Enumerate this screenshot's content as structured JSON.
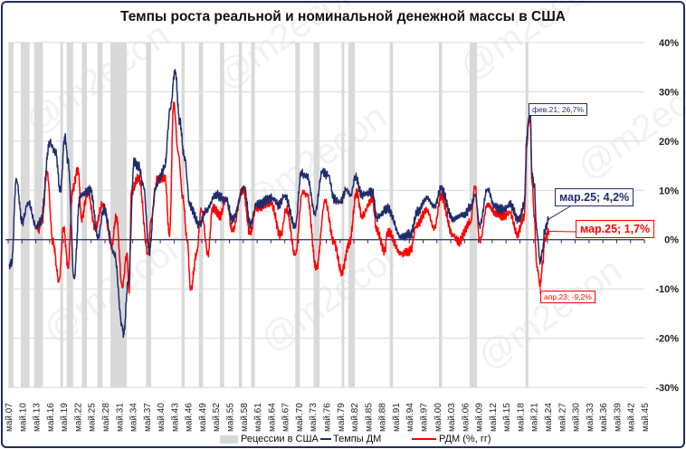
{
  "chart_data": {
    "type": "line",
    "title": "Темпы роста реальной и номинальной денежной массы в США",
    "ylim": [
      -30,
      40
    ],
    "yticks": [
      "-30%",
      "-20%",
      "-10%",
      "0%",
      "10%",
      "20%",
      "30%",
      "40%"
    ],
    "ytick_values": [
      -30,
      -20,
      -10,
      0,
      10,
      20,
      30,
      40
    ],
    "y_axis_position": "right",
    "grid": true,
    "legend_placement": "bottom",
    "xlim": [
      1907.3,
      2047
    ],
    "xticks": [
      "май.07",
      "май.10",
      "май.13",
      "май.16",
      "май.19",
      "май.22",
      "май.25",
      "май.28",
      "май.31",
      "май.34",
      "май.37",
      "май.40",
      "май.43",
      "май.46",
      "май.49",
      "май.52",
      "май.55",
      "май.58",
      "май.61",
      "май.64",
      "май.67",
      "май.70",
      "май.73",
      "май.76",
      "май.79",
      "май.82",
      "май.85",
      "май.88",
      "май.91",
      "май.94",
      "май.97",
      "май.00",
      "май.03",
      "май.06",
      "май.09",
      "май.12",
      "май.15",
      "май.18",
      "май.21",
      "май.24",
      "май.27",
      "май.30",
      "май.33",
      "май.36",
      "май.39",
      "май.42",
      "май.45"
    ],
    "recessions": [
      [
        1907.4,
        1908.5
      ],
      [
        1910.1,
        1912.0
      ],
      [
        1913.0,
        1914.9
      ],
      [
        1918.7,
        1919.2
      ],
      [
        1920.1,
        1921.5
      ],
      [
        1923.4,
        1924.5
      ],
      [
        1926.8,
        1927.9
      ],
      [
        1929.6,
        1933.2
      ],
      [
        1937.4,
        1938.5
      ],
      [
        1945.1,
        1945.8
      ],
      [
        1948.9,
        1949.8
      ],
      [
        1953.5,
        1954.4
      ],
      [
        1957.6,
        1958.3
      ],
      [
        1960.3,
        1961.1
      ],
      [
        1969.9,
        1970.9
      ],
      [
        1973.9,
        1975.2
      ],
      [
        1980.0,
        1980.5
      ],
      [
        1981.5,
        1982.9
      ],
      [
        1990.5,
        1991.2
      ],
      [
        2001.2,
        2001.9
      ],
      [
        2007.9,
        2009.5
      ],
      [
        2020.1,
        2020.4
      ]
    ],
    "series": [
      {
        "name": "Темпы ДМ",
        "color": "#1f2d6b",
        "points": [
          [
            1907.6,
            -5
          ],
          [
            1908.1,
            -4.8
          ],
          [
            1909.1,
            12.4
          ],
          [
            1910.4,
            3.6
          ],
          [
            1911.7,
            7.6
          ],
          [
            1913.4,
            2.7
          ],
          [
            1914.4,
            3.6
          ],
          [
            1916.4,
            19.7
          ],
          [
            1917.7,
            17.6
          ],
          [
            1918.7,
            9.7
          ],
          [
            1919.7,
            20.9
          ],
          [
            1920.4,
            15.8
          ],
          [
            1921.7,
            -7.9
          ],
          [
            1923,
            9.1
          ],
          [
            1925.3,
            10
          ],
          [
            1926.9,
            0.6
          ],
          [
            1928.2,
            6.1
          ],
          [
            1930.5,
            -3
          ],
          [
            1932.2,
            -17.6
          ],
          [
            1932.5,
            -19.1
          ],
          [
            1933.5,
            -8.5
          ],
          [
            1934.8,
            15.8
          ],
          [
            1935.8,
            14.8
          ],
          [
            1936.8,
            10.9
          ],
          [
            1938.1,
            -2.4
          ],
          [
            1939.4,
            10.3
          ],
          [
            1940.4,
            12.7
          ],
          [
            1941.4,
            14.5
          ],
          [
            1942.7,
            26.7
          ],
          [
            1943.7,
            34.5
          ],
          [
            1944.7,
            24.2
          ],
          [
            1945.7,
            17
          ],
          [
            1947,
            6.7
          ],
          [
            1949,
            3
          ],
          [
            1950.6,
            6.1
          ],
          [
            1952.6,
            9.1
          ],
          [
            1954.9,
            8
          ],
          [
            1956.2,
            4
          ],
          [
            1958.8,
            10.6
          ],
          [
            1960.1,
            3
          ],
          [
            1961.4,
            7
          ],
          [
            1965,
            8.5
          ],
          [
            1966.3,
            7
          ],
          [
            1967.6,
            9
          ],
          [
            1969.9,
            2.6
          ],
          [
            1971.2,
            13.4
          ],
          [
            1972.5,
            12.8
          ],
          [
            1974.2,
            5.4
          ],
          [
            1975.8,
            13.7
          ],
          [
            1977.1,
            13
          ],
          [
            1978.4,
            8.2
          ],
          [
            1979.7,
            7.5
          ],
          [
            1981,
            10
          ],
          [
            1982,
            9
          ],
          [
            1983,
            12.8
          ],
          [
            1984.4,
            9.1
          ],
          [
            1986.7,
            9.7
          ],
          [
            1987.7,
            4.5
          ],
          [
            1990,
            6.3
          ],
          [
            1993,
            0.5
          ],
          [
            1995,
            1.1
          ],
          [
            1996.6,
            5.7
          ],
          [
            1998.6,
            8.5
          ],
          [
            2000.2,
            6.6
          ],
          [
            2001.7,
            10.3
          ],
          [
            2004.2,
            4.2
          ],
          [
            2006.8,
            5.1
          ],
          [
            2008.1,
            6.6
          ],
          [
            2009.1,
            9.1
          ],
          [
            2010.1,
            2.9
          ],
          [
            2011.8,
            10.3
          ],
          [
            2013.4,
            6.6
          ],
          [
            2015.4,
            6
          ],
          [
            2016.7,
            7.2
          ],
          [
            2018.6,
            3.9
          ],
          [
            2019.8,
            6.9
          ],
          [
            2020.4,
            21
          ],
          [
            2020.7,
            24
          ],
          [
            2021.1,
            26.7
          ],
          [
            2021.5,
            13
          ],
          [
            2022,
            11
          ],
          [
            2022.5,
            2
          ],
          [
            2023.3,
            -4.5
          ],
          [
            2023.8,
            -2
          ],
          [
            2024.3,
            2
          ],
          [
            2025.2,
            4.2
          ]
        ]
      },
      {
        "name": "РДМ (%, гг)",
        "color": "#ff0000",
        "points": [
          [
            1913.8,
            1.8
          ],
          [
            1914.8,
            4.2
          ],
          [
            1915.8,
            13.9
          ],
          [
            1917.1,
            -0.6
          ],
          [
            1918.4,
            -8.5
          ],
          [
            1919.4,
            2.4
          ],
          [
            1920.4,
            -5.5
          ],
          [
            1921.4,
            10.3
          ],
          [
            1922.6,
            14.5
          ],
          [
            1923.3,
            4.2
          ],
          [
            1924.7,
            9.7
          ],
          [
            1926.3,
            2.4
          ],
          [
            1928,
            7.3
          ],
          [
            1929.9,
            -1.2
          ],
          [
            1930.9,
            4.8
          ],
          [
            1932.2,
            -9.7
          ],
          [
            1933.2,
            -3
          ],
          [
            1933.7,
            -10.9
          ],
          [
            1934.2,
            9.7
          ],
          [
            1935.8,
            12.7
          ],
          [
            1937.8,
            -3
          ],
          [
            1938.5,
            4.2
          ],
          [
            1939.8,
            12.1
          ],
          [
            1941.5,
            12.7
          ],
          [
            1942.5,
            0.6
          ],
          [
            1943.4,
            27.9
          ],
          [
            1944.4,
            17.6
          ],
          [
            1945.4,
            8.5
          ],
          [
            1946.4,
            -0.6
          ],
          [
            1947.1,
            -10.3
          ],
          [
            1948.4,
            -3
          ],
          [
            1949.4,
            6.1
          ],
          [
            1950.9,
            -2.9
          ],
          [
            1951.9,
            6.6
          ],
          [
            1953.5,
            4.8
          ],
          [
            1954.9,
            8.5
          ],
          [
            1956.2,
            1.7
          ],
          [
            1958.5,
            10.3
          ],
          [
            1960.1,
            1.1
          ],
          [
            1961.4,
            6.6
          ],
          [
            1964.7,
            7.2
          ],
          [
            1966.7,
            0.8
          ],
          [
            1968,
            6.3
          ],
          [
            1969.9,
            -3.2
          ],
          [
            1971.5,
            9.7
          ],
          [
            1972.5,
            9
          ],
          [
            1974.5,
            -6
          ],
          [
            1976.4,
            7.8
          ],
          [
            1978.4,
            -0.7
          ],
          [
            1980,
            -6.6
          ],
          [
            1981.7,
            -0.7
          ],
          [
            1983.3,
            9.7
          ],
          [
            1984.4,
            4.8
          ],
          [
            1986.7,
            8.2
          ],
          [
            1987.7,
            1.7
          ],
          [
            1989.4,
            -2.3
          ],
          [
            1990,
            1.7
          ],
          [
            1993,
            -2.9
          ],
          [
            1995,
            -2.3
          ],
          [
            1996.3,
            2.9
          ],
          [
            1998.6,
            6
          ],
          [
            2000.2,
            2.3
          ],
          [
            2001.7,
            8.8
          ],
          [
            2004.2,
            1.1
          ],
          [
            2005.5,
            -0.4
          ],
          [
            2008.1,
            3.6
          ],
          [
            2009.1,
            10.9
          ],
          [
            2010.1,
            -0.4
          ],
          [
            2011.8,
            7.2
          ],
          [
            2013.4,
            5.4
          ],
          [
            2015.4,
            4.8
          ],
          [
            2016.7,
            5.4
          ],
          [
            2018.3,
            1.1
          ],
          [
            2019.8,
            4.8
          ],
          [
            2020.4,
            19
          ],
          [
            2020.7,
            23
          ],
          [
            2021.1,
            25
          ],
          [
            2021.5,
            12
          ],
          [
            2022,
            5
          ],
          [
            2022.5,
            -5
          ],
          [
            2023.3,
            -9.2
          ],
          [
            2023.8,
            -5
          ],
          [
            2024.3,
            0
          ],
          [
            2025.2,
            1.7
          ]
        ]
      }
    ],
    "annotations": [
      {
        "text": "фев.21; 26,7%",
        "series": "Темпы ДМ",
        "x": 2021.1,
        "y": 26.7
      },
      {
        "text": "мар.25; 4,2%",
        "series": "Темпы ДМ",
        "x": 2025.2,
        "y": 4.2
      },
      {
        "text": "мар.25; 1,7%",
        "series": "РДМ (%, гг)",
        "x": 2025.2,
        "y": 1.7
      },
      {
        "text": "апр.23; -9,2%",
        "series": "РДМ (%, гг)",
        "x": 2023.3,
        "y": -9.2
      }
    ],
    "legend": [
      "Рецессии в США",
      "Темпы ДМ",
      "РДМ (%, гг)"
    ],
    "recession_color": "#d9d9d9",
    "watermark": "@m2econ"
  }
}
